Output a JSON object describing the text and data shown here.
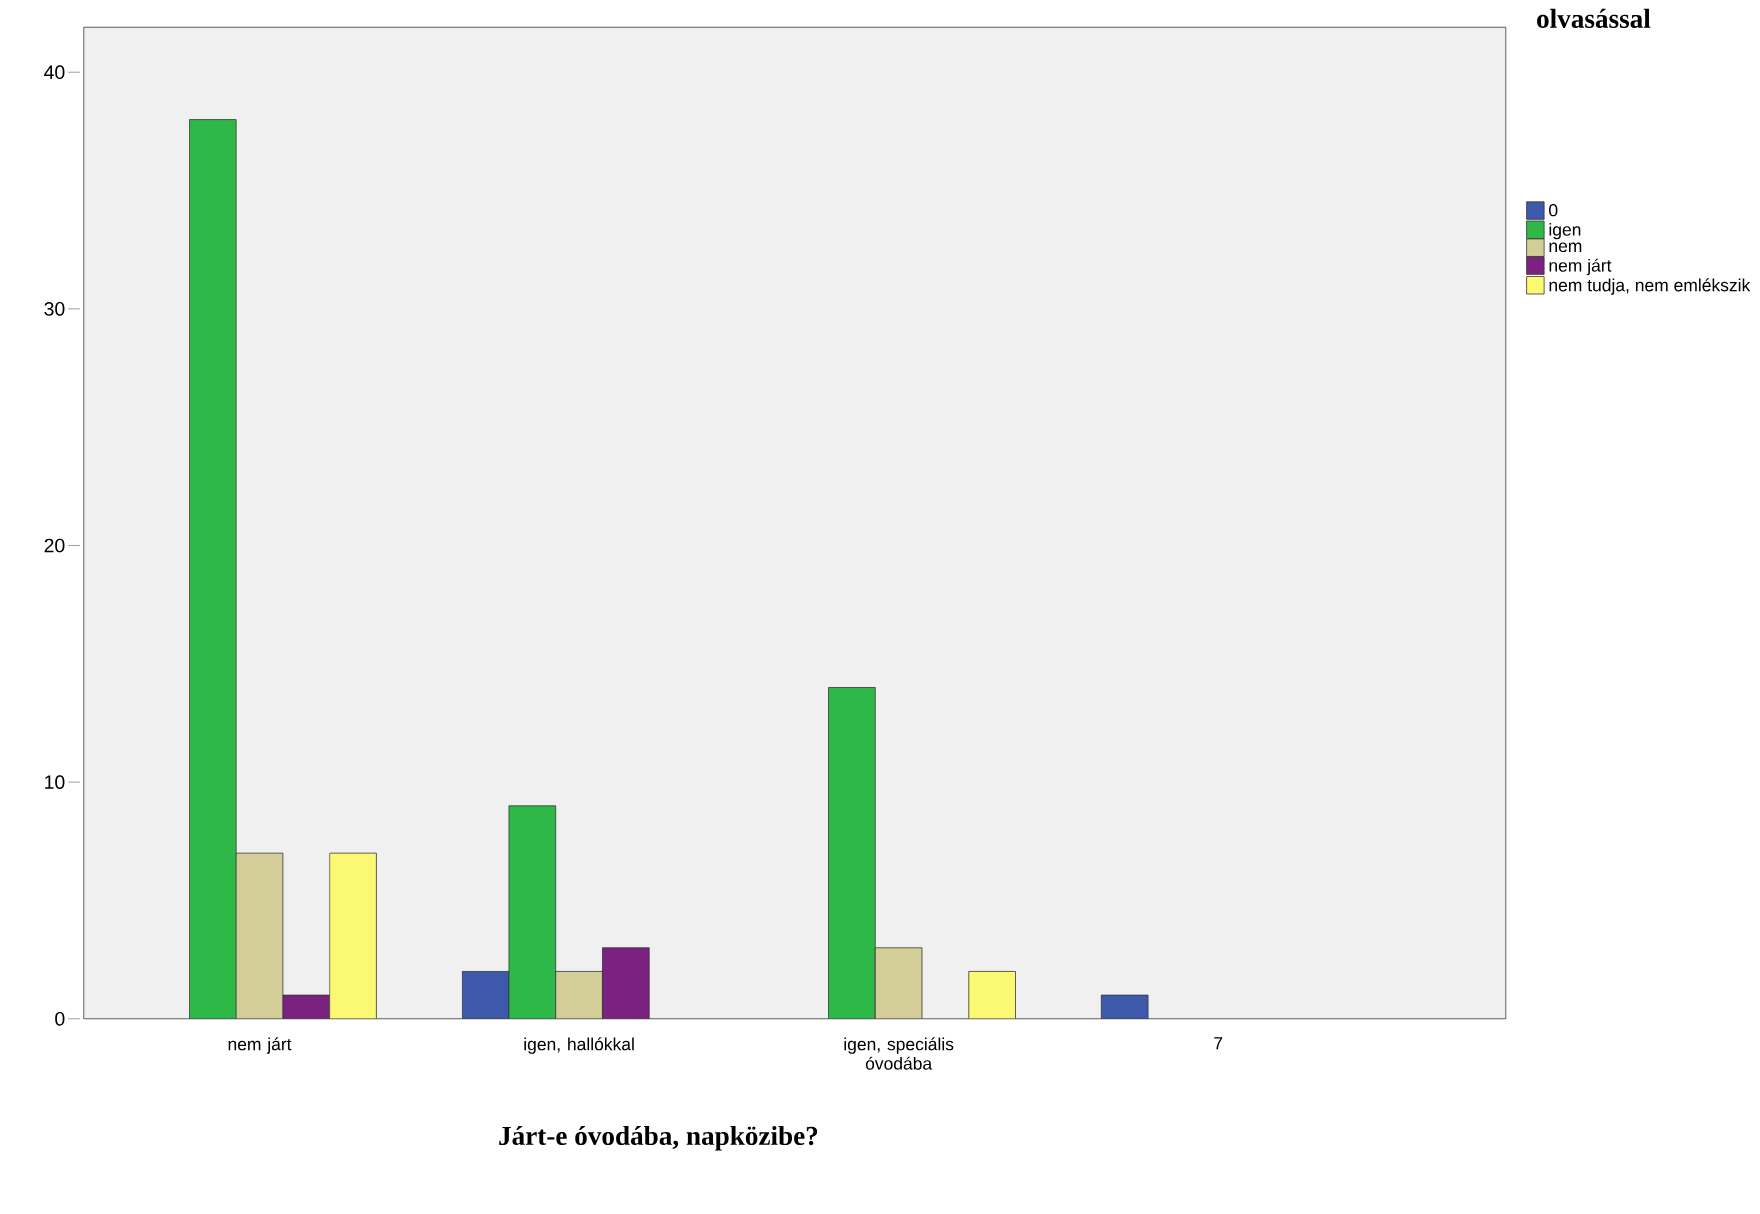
{
  "chart_data": {
    "type": "bar",
    "xlabel": "Járt-e óvodába, napközibe?",
    "legend_title": "olvasással",
    "categories": [
      "nem járt",
      "igen, hallókkal",
      "igen, speciális óvodába",
      "7"
    ],
    "series": [
      {
        "name": "0",
        "color": "#3e58ac",
        "values": [
          null,
          2,
          null,
          1
        ]
      },
      {
        "name": "igen",
        "color": "#2eb848",
        "values": [
          38,
          9,
          14,
          null
        ]
      },
      {
        "name": "nem",
        "color": "#d3ce97",
        "values": [
          7,
          2,
          3,
          null
        ]
      },
      {
        "name": "nem járt",
        "color": "#7b2281",
        "values": [
          1,
          3,
          null,
          null
        ]
      },
      {
        "name": "nem tudja, nem emlékszik",
        "color": "#fbf873",
        "values": [
          7,
          null,
          2,
          null
        ]
      }
    ],
    "ylim": [
      0,
      41.9
    ],
    "yticks": [
      0,
      10,
      20,
      30,
      40
    ],
    "legend": "right"
  }
}
